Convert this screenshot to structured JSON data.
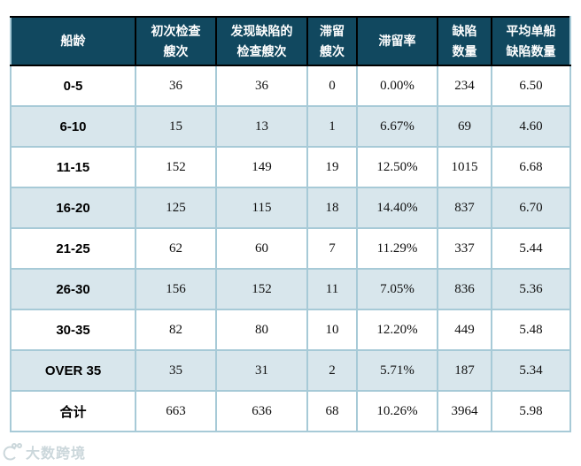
{
  "chart_data": {
    "type": "table",
    "title": "",
    "columns": [
      "船龄",
      "初次检查艘次",
      "发现缺陷的检查艘次",
      "滞留艘次",
      "滞留率",
      "缺陷数量",
      "平均单船缺陷数量"
    ],
    "header_lines": [
      [
        "船龄"
      ],
      [
        "初次检查",
        "艘次"
      ],
      [
        "发现缺陷的",
        "检查艘次"
      ],
      [
        "滞留",
        "艘次"
      ],
      [
        "滞留率"
      ],
      [
        "缺陷",
        "数量"
      ],
      [
        "平均单船",
        "缺陷数量"
      ]
    ],
    "rows": [
      {
        "label": "0-5",
        "values": [
          "36",
          "36",
          "0",
          "0.00%",
          "234",
          "6.50"
        ]
      },
      {
        "label": "6-10",
        "values": [
          "15",
          "13",
          "1",
          "6.67%",
          "69",
          "4.60"
        ]
      },
      {
        "label": "11-15",
        "values": [
          "152",
          "149",
          "19",
          "12.50%",
          "1015",
          "6.68"
        ]
      },
      {
        "label": "16-20",
        "values": [
          "125",
          "115",
          "18",
          "14.40%",
          "837",
          "6.70"
        ]
      },
      {
        "label": "21-25",
        "values": [
          "62",
          "60",
          "7",
          "11.29%",
          "337",
          "5.44"
        ]
      },
      {
        "label": "26-30",
        "values": [
          "156",
          "152",
          "11",
          "7.05%",
          "836",
          "5.36"
        ]
      },
      {
        "label": "30-35",
        "values": [
          "82",
          "80",
          "10",
          "12.20%",
          "449",
          "5.48"
        ]
      },
      {
        "label": "OVER 35",
        "values": [
          "35",
          "31",
          "2",
          "5.71%",
          "187",
          "5.34"
        ]
      },
      {
        "label": "合计",
        "values": [
          "663",
          "636",
          "68",
          "10.26%",
          "3964",
          "5.98"
        ]
      }
    ]
  },
  "watermark": {
    "text": "大数跨境"
  },
  "colors": {
    "header_bg": "#11485f",
    "header_text": "#ffffff",
    "header_border": "#000000",
    "row_alt_bg": "#d8e6ec",
    "grid_line": "#a7cad7",
    "body_text": "#111111",
    "watermark": "#c9d5da"
  }
}
